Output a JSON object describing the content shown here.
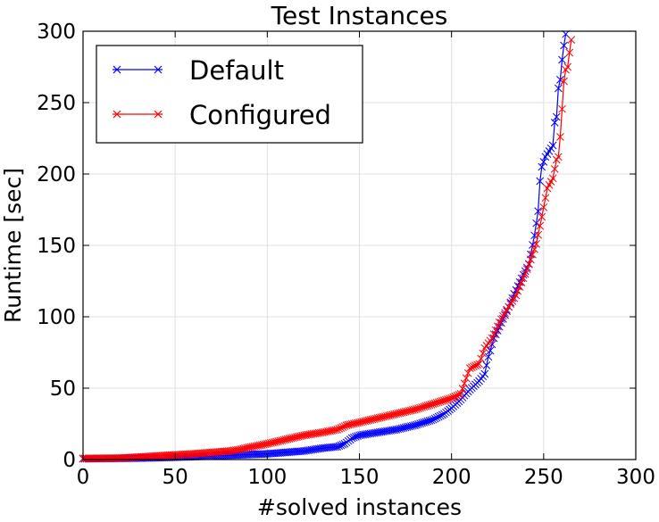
{
  "chart_data": {
    "type": "line",
    "title": "Test Instances",
    "xlabel": "#solved instances",
    "ylabel": "Runtime [sec]",
    "xlim": [
      0,
      300
    ],
    "ylim": [
      0,
      300
    ],
    "xticks": [
      "0",
      "50",
      "100",
      "150",
      "200",
      "250",
      "300"
    ],
    "yticks": [
      "0",
      "50",
      "100",
      "150",
      "200",
      "250",
      "300"
    ],
    "grid": true,
    "legend_position": "top-left",
    "marker": "x",
    "series": [
      {
        "name": "Default",
        "color": "#0000ff",
        "points": [
          [
            0,
            0.5
          ],
          [
            20,
            0.8
          ],
          [
            40,
            1.2
          ],
          [
            60,
            2
          ],
          [
            80,
            3
          ],
          [
            90,
            3.5
          ],
          [
            100,
            4
          ],
          [
            110,
            5
          ],
          [
            120,
            6
          ],
          [
            130,
            8
          ],
          [
            138,
            9
          ],
          [
            142,
            11
          ],
          [
            146,
            15
          ],
          [
            150,
            17
          ],
          [
            160,
            19
          ],
          [
            170,
            21
          ],
          [
            180,
            24
          ],
          [
            190,
            28
          ],
          [
            196,
            32
          ],
          [
            200,
            36
          ],
          [
            205,
            42
          ],
          [
            210,
            49
          ],
          [
            215,
            55
          ],
          [
            218,
            60
          ],
          [
            220,
            72
          ],
          [
            223,
            85
          ],
          [
            226,
            93
          ],
          [
            230,
            104
          ],
          [
            234,
            116
          ],
          [
            238,
            127
          ],
          [
            242,
            137
          ],
          [
            245,
            157
          ],
          [
            247,
            174
          ],
          [
            248,
            195
          ],
          [
            249,
            205
          ],
          [
            251,
            212
          ],
          [
            253,
            216
          ],
          [
            255,
            220
          ],
          [
            256,
            236
          ],
          [
            257,
            240
          ],
          [
            258,
            260
          ],
          [
            259,
            266
          ],
          [
            260,
            280
          ],
          [
            261,
            290
          ],
          [
            262,
            298
          ]
        ]
      },
      {
        "name": "Configured",
        "color": "#ff0000",
        "points": [
          [
            0,
            0.8
          ],
          [
            20,
            1
          ],
          [
            40,
            2.5
          ],
          [
            60,
            4
          ],
          [
            80,
            6
          ],
          [
            85,
            7
          ],
          [
            90,
            8.5
          ],
          [
            100,
            11
          ],
          [
            110,
            14
          ],
          [
            120,
            17
          ],
          [
            130,
            19
          ],
          [
            138,
            21
          ],
          [
            143,
            24
          ],
          [
            150,
            26
          ],
          [
            160,
            29
          ],
          [
            170,
            32
          ],
          [
            180,
            35
          ],
          [
            190,
            39
          ],
          [
            200,
            43
          ],
          [
            205,
            46
          ],
          [
            208,
            57
          ],
          [
            210,
            64
          ],
          [
            215,
            67
          ],
          [
            218,
            78
          ],
          [
            222,
            85
          ],
          [
            226,
            96
          ],
          [
            230,
            105
          ],
          [
            235,
            115
          ],
          [
            240,
            130
          ],
          [
            243,
            140
          ],
          [
            246,
            151
          ],
          [
            249,
            170
          ],
          [
            252,
            190
          ],
          [
            255,
            197
          ],
          [
            257,
            210
          ],
          [
            258,
            212
          ],
          [
            259,
            226
          ],
          [
            261,
            265
          ],
          [
            262,
            273
          ],
          [
            263,
            275
          ],
          [
            264,
            285
          ],
          [
            265,
            294
          ]
        ]
      }
    ]
  }
}
